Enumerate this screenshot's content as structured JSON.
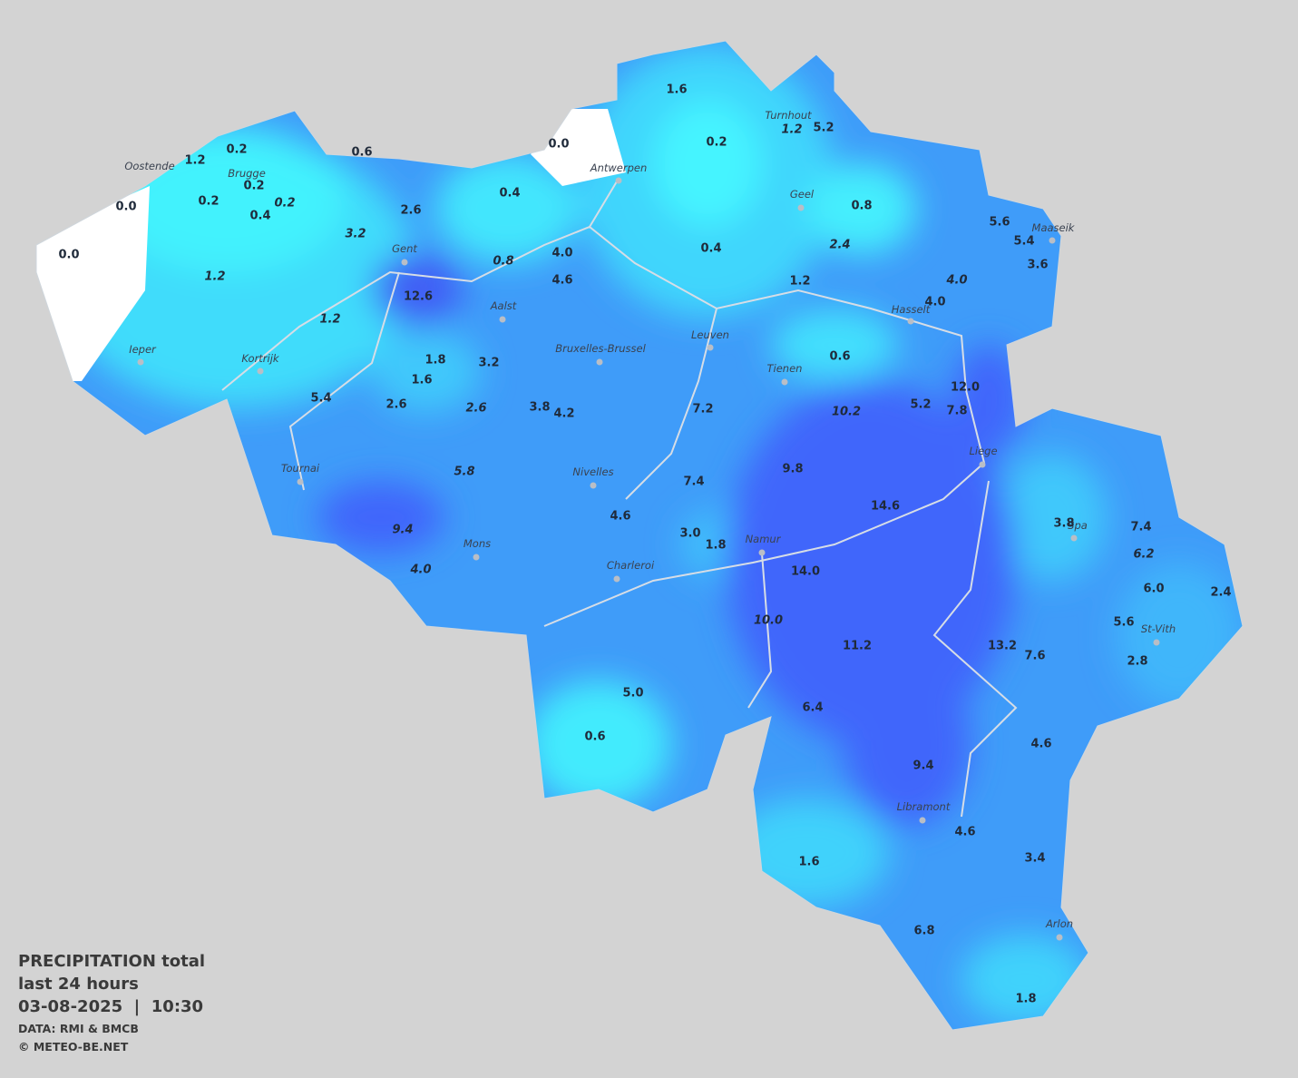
{
  "title": {
    "line1": "PRECIPITATION total",
    "line2": "last 24 hours",
    "line3": "03-08-2025  |  10:30"
  },
  "credits": {
    "data": "DATA: RMI & BMCB",
    "copyright": "© METEO-BE.NET"
  },
  "cities": [
    "Oostende",
    "Brugge",
    "Antwerpen",
    "Turnhout",
    "Geel",
    "Maaseik",
    "Gent",
    "Aalst",
    "Hasselt",
    "Leuven",
    "Kortrijk",
    "Ieper",
    "Bruxelles-Brussel",
    "Tienen",
    "Liege",
    "Tournai",
    "Nivelles",
    "Namur",
    "Mons",
    "Charleroi",
    "Spa",
    "St-Vith",
    "Libramont",
    "Arlon"
  ],
  "readings": [
    {
      "value": "0.0"
    },
    {
      "value": "0.0"
    },
    {
      "value": "1.2"
    },
    {
      "value": "0.2"
    },
    {
      "value": "0.2"
    },
    {
      "value": "0.2"
    },
    {
      "value": "0.4"
    },
    {
      "value": "0.2",
      "italic": true
    },
    {
      "value": "0.6"
    },
    {
      "value": "0.0"
    },
    {
      "value": "0.4"
    },
    {
      "value": "2.6"
    },
    {
      "value": "3.2",
      "italic": true
    },
    {
      "value": "1.2",
      "italic": true
    },
    {
      "value": "0.8",
      "italic": true
    },
    {
      "value": "4.0"
    },
    {
      "value": "4.6"
    },
    {
      "value": "12.6"
    },
    {
      "value": "1.2",
      "italic": true
    },
    {
      "value": "1.6"
    },
    {
      "value": "0.2"
    },
    {
      "value": "0.4"
    },
    {
      "value": "1.2",
      "italic": true
    },
    {
      "value": "5.2"
    },
    {
      "value": "0.8"
    },
    {
      "value": "2.4",
      "italic": true
    },
    {
      "value": "5.6"
    },
    {
      "value": "5.4"
    },
    {
      "value": "3.6"
    },
    {
      "value": "4.0",
      "italic": true
    },
    {
      "value": "4.0"
    },
    {
      "value": "1.2"
    },
    {
      "value": "0.6"
    },
    {
      "value": "1.8"
    },
    {
      "value": "1.6"
    },
    {
      "value": "3.2"
    },
    {
      "value": "5.4"
    },
    {
      "value": "2.6"
    },
    {
      "value": "2.6",
      "italic": true
    },
    {
      "value": "3.8"
    },
    {
      "value": "4.2"
    },
    {
      "value": "7.2"
    },
    {
      "value": "10.2",
      "italic": true
    },
    {
      "value": "5.2"
    },
    {
      "value": "12.0"
    },
    {
      "value": "7.8"
    },
    {
      "value": "5.8",
      "italic": true
    },
    {
      "value": "9.8"
    },
    {
      "value": "7.4"
    },
    {
      "value": "14.6"
    },
    {
      "value": "4.6"
    },
    {
      "value": "9.4",
      "italic": true
    },
    {
      "value": "3.0"
    },
    {
      "value": "1.8"
    },
    {
      "value": "4.0",
      "italic": true
    },
    {
      "value": "14.0"
    },
    {
      "value": "3.8"
    },
    {
      "value": "7.4"
    },
    {
      "value": "6.2",
      "italic": true
    },
    {
      "value": "6.0"
    },
    {
      "value": "2.4"
    },
    {
      "value": "10.0",
      "italic": true
    },
    {
      "value": "11.2"
    },
    {
      "value": "13.2"
    },
    {
      "value": "7.6"
    },
    {
      "value": "5.6"
    },
    {
      "value": "2.8"
    },
    {
      "value": "5.0"
    },
    {
      "value": "6.4"
    },
    {
      "value": "0.6"
    },
    {
      "value": "4.6"
    },
    {
      "value": "9.4"
    },
    {
      "value": "4.6"
    },
    {
      "value": "1.6"
    },
    {
      "value": "3.4"
    },
    {
      "value": "6.8"
    },
    {
      "value": "1.8"
    }
  ]
}
